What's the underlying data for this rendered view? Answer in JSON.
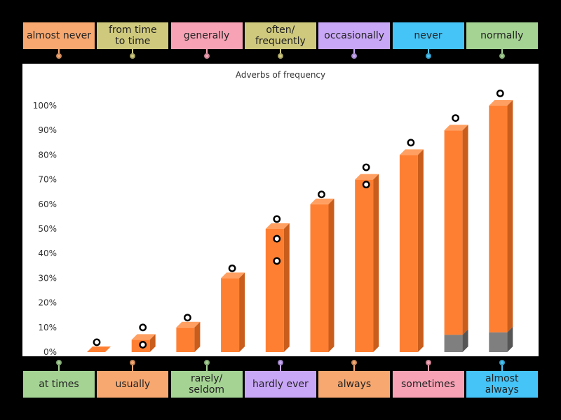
{
  "top_labels": [
    {
      "label": "almost never",
      "color": "#f7a870"
    },
    {
      "label": "from time\nto time",
      "color": "#cfc97d"
    },
    {
      "label": "generally",
      "color": "#f7a3b5"
    },
    {
      "label": "often/\nfrequently",
      "color": "#cfc97d"
    },
    {
      "label": "occasionally",
      "color": "#c9a7f7"
    },
    {
      "label": "never",
      "color": "#45c4f7"
    },
    {
      "label": "normally",
      "color": "#a5d394"
    }
  ],
  "bottom_labels": [
    {
      "label": "at times",
      "color": "#a5d394"
    },
    {
      "label": "usually",
      "color": "#f7a870"
    },
    {
      "label": "rarely/\nseldom",
      "color": "#a5d394"
    },
    {
      "label": "hardly ever",
      "color": "#c9a7f7"
    },
    {
      "label": "always",
      "color": "#f7a870"
    },
    {
      "label": "sometimes",
      "color": "#f7a3b5"
    },
    {
      "label": "almost\nalways",
      "color": "#45c4f7"
    }
  ],
  "colors": {
    "bar_front": "#ff7f32",
    "bar_top": "#ffa062",
    "bar_side": "#c95d1c",
    "bar_gray_front": "#7f7f7f",
    "bar_gray_top": "#9a9a9a",
    "bar_gray_side": "#555555"
  },
  "chart_data": {
    "type": "bar",
    "title": "Adverbs of frequency",
    "y_ticks": [
      "0%",
      "10%",
      "20%",
      "30%",
      "40%",
      "50%",
      "60%",
      "70%",
      "80%",
      "90%",
      "100%"
    ],
    "ylim": [
      0,
      100
    ],
    "values": [
      0,
      5,
      10,
      30,
      50,
      60,
      70,
      80,
      90,
      100
    ],
    "gray_base": [
      0,
      0,
      0,
      0,
      0,
      0,
      0,
      0,
      7,
      8
    ],
    "drop_targets": [
      [
        4
      ],
      [
        10,
        3
      ],
      [
        14
      ],
      [
        34
      ],
      [
        54,
        46,
        37
      ],
      [
        64
      ],
      [
        75,
        68
      ],
      [
        85
      ],
      [
        95
      ],
      [
        105
      ]
    ]
  }
}
